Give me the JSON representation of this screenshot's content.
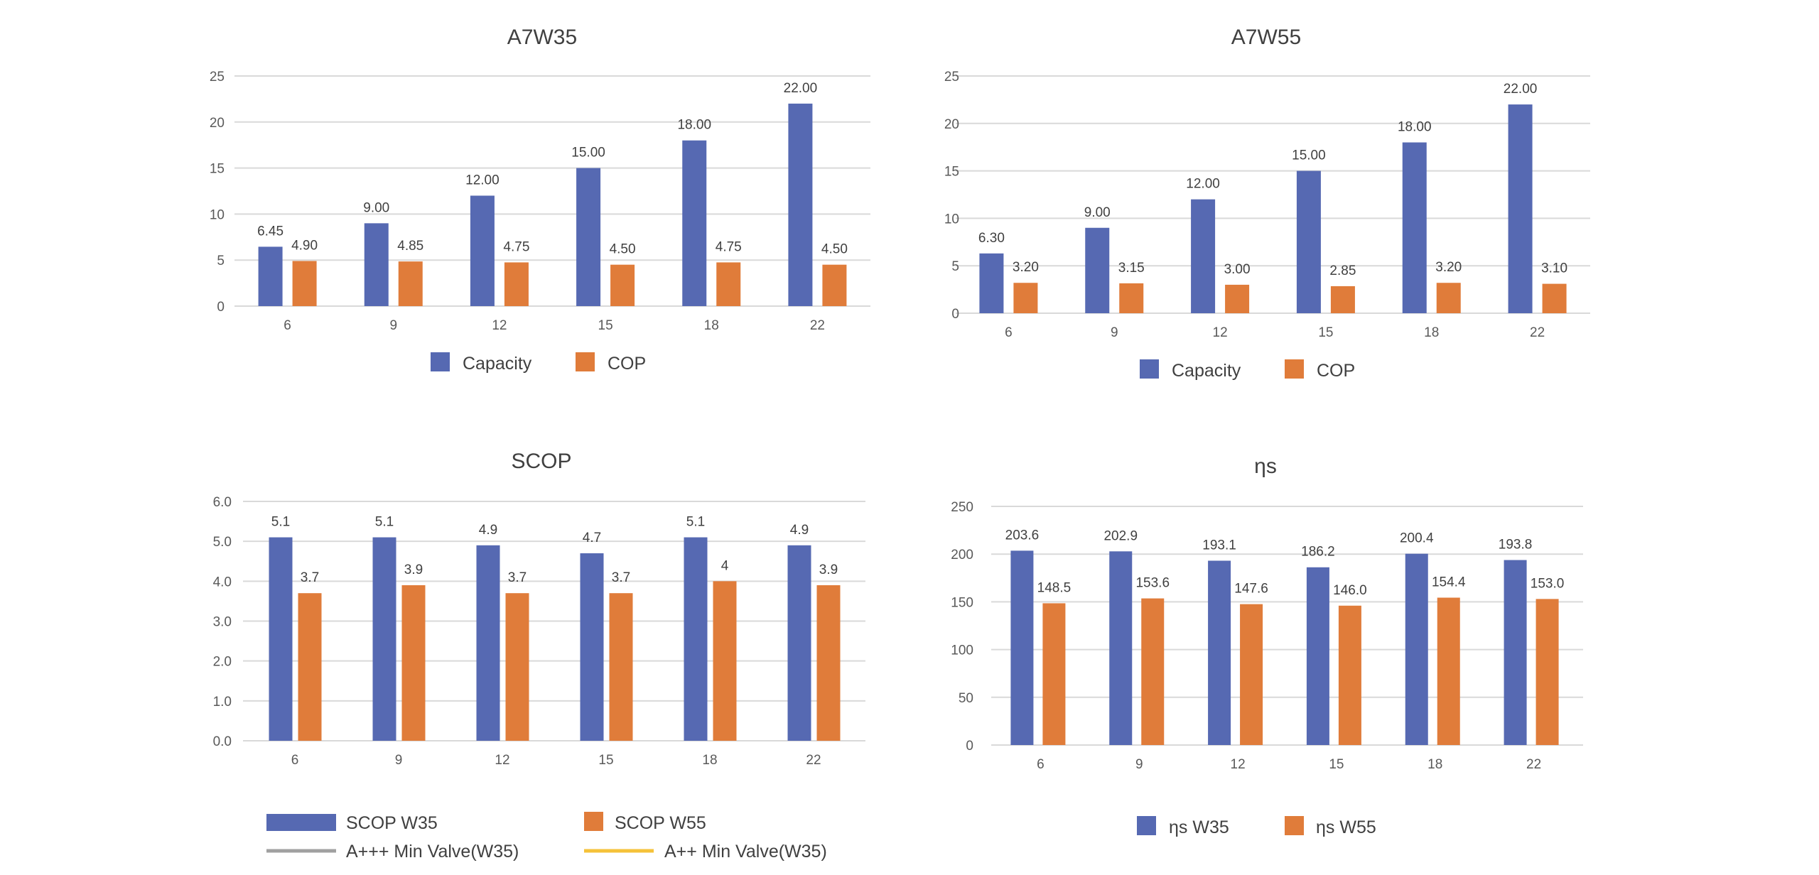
{
  "colors": {
    "blue": "#5669b2",
    "orange": "#e07c3a",
    "grid": "#d9d9d9",
    "gray_line": "#a0a0a0",
    "yellow_line": "#f5c23a"
  },
  "chart_data": [
    {
      "type": "bar",
      "title": "A7W35",
      "categories": [
        "6",
        "9",
        "12",
        "15",
        "18",
        "22"
      ],
      "ylim": [
        0,
        25
      ],
      "yticks": [
        "0",
        "5",
        "10",
        "15",
        "20",
        "25"
      ],
      "series": [
        {
          "name": "Capacity",
          "values": [
            6.45,
            9.0,
            12.0,
            15.0,
            18.0,
            22.0
          ],
          "labels": [
            "6.45",
            "9.00",
            "12.00",
            "15.00",
            "18.00",
            "22.00"
          ]
        },
        {
          "name": "COP",
          "values": [
            4.9,
            4.85,
            4.75,
            4.5,
            4.75,
            4.5
          ],
          "labels": [
            "4.90",
            "4.85",
            "4.75",
            "4.50",
            "4.75",
            "4.50"
          ]
        }
      ],
      "legend": [
        "Capacity",
        "COP"
      ]
    },
    {
      "type": "bar",
      "title": "A7W55",
      "categories": [
        "6",
        "9",
        "12",
        "15",
        "18",
        "22"
      ],
      "ylim": [
        0,
        25
      ],
      "yticks": [
        "0",
        "5",
        "10",
        "15",
        "20",
        "25"
      ],
      "series": [
        {
          "name": "Capacity",
          "values": [
            6.3,
            9.0,
            12.0,
            15.0,
            18.0,
            22.0
          ],
          "labels": [
            "6.30",
            "9.00",
            "12.00",
            "15.00",
            "18.00",
            "22.00"
          ]
        },
        {
          "name": "COP",
          "values": [
            3.2,
            3.15,
            3.0,
            2.85,
            3.2,
            3.1
          ],
          "labels": [
            "3.20",
            "3.15",
            "3.00",
            "2.85",
            "3.20",
            "3.10"
          ]
        }
      ],
      "legend": [
        "Capacity",
        "COP"
      ]
    },
    {
      "type": "bar",
      "title": "SCOP",
      "categories": [
        "6",
        "9",
        "12",
        "15",
        "18",
        "22"
      ],
      "ylim": [
        0,
        6
      ],
      "yticks": [
        "0.0",
        "1.0",
        "2.0",
        "3.0",
        "4.0",
        "5.0",
        "6.0"
      ],
      "series": [
        {
          "name": "SCOP W35",
          "values": [
            5.1,
            5.1,
            4.9,
            4.7,
            5.1,
            4.9
          ],
          "labels": [
            "5.1",
            "5.1",
            "4.9",
            "4.7",
            "5.1",
            "4.9"
          ]
        },
        {
          "name": "SCOP W55",
          "values": [
            3.7,
            3.9,
            3.7,
            3.7,
            4.0,
            3.9
          ],
          "labels": [
            "3.7",
            "3.9",
            "3.7",
            "3.7",
            "4",
            "3.9"
          ]
        }
      ],
      "legend": [
        "SCOP W35",
        "SCOP W55",
        "A+++ Min Valve(W35)",
        "A++ Min Valve(W35)"
      ]
    },
    {
      "type": "bar",
      "title": "ηs",
      "categories": [
        "6",
        "9",
        "12",
        "15",
        "18",
        "22"
      ],
      "ylim": [
        0,
        250
      ],
      "yticks": [
        "0",
        "50",
        "100",
        "150",
        "200",
        "250"
      ],
      "series": [
        {
          "name": "ηs W35",
          "values": [
            203.6,
            202.9,
            193.1,
            186.2,
            200.4,
            193.8
          ],
          "labels": [
            "203.6",
            "202.9",
            "193.1",
            "186.2",
            "200.4",
            "193.8"
          ]
        },
        {
          "name": "ηs W55",
          "values": [
            148.5,
            153.6,
            147.6,
            146.0,
            154.4,
            153.0
          ],
          "labels": [
            "148.5",
            "153.6",
            "147.6",
            "146.0",
            "154.4",
            "153.0"
          ]
        }
      ],
      "legend": [
        "ηs W35",
        "ηs W55"
      ]
    }
  ]
}
